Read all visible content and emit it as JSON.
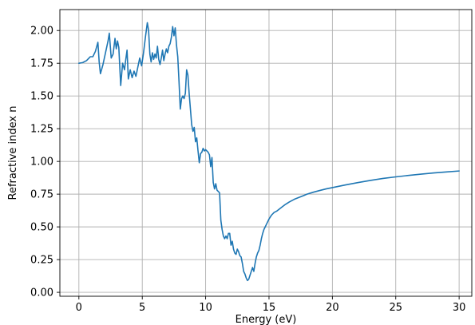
{
  "chart_data": {
    "type": "line",
    "title": "",
    "xlabel": "Energy (eV)",
    "ylabel": "Refractive index n",
    "xlim": [
      -1.5,
      31.0
    ],
    "ylim": [
      -0.03,
      2.16
    ],
    "x_ticks": [
      0,
      5,
      10,
      15,
      20,
      25,
      30
    ],
    "x_tick_labels": [
      "0",
      "5",
      "10",
      "15",
      "20",
      "25",
      "30"
    ],
    "y_ticks": [
      0.0,
      0.25,
      0.5,
      0.75,
      1.0,
      1.25,
      1.5,
      1.75,
      2.0
    ],
    "y_tick_labels": [
      "0.00",
      "0.25",
      "0.50",
      "0.75",
      "1.00",
      "1.25",
      "1.50",
      "1.75",
      "2.00"
    ],
    "grid": true,
    "legend": "none",
    "line_color": "#1f77b4",
    "series": [
      {
        "x": [
          0.0,
          0.3,
          0.6,
          0.9,
          1.1,
          1.3,
          1.5,
          1.6,
          1.7,
          1.9,
          2.1,
          2.3,
          2.4,
          2.55,
          2.7,
          2.85,
          2.95,
          3.05,
          3.15,
          3.3,
          3.45,
          3.6,
          3.7,
          3.8,
          3.9,
          4.05,
          4.2,
          4.35,
          4.5,
          4.65,
          4.8,
          4.95,
          5.1,
          5.25,
          5.4,
          5.5,
          5.6,
          5.7,
          5.8,
          5.9,
          6.0,
          6.1,
          6.2,
          6.3,
          6.4,
          6.5,
          6.6,
          6.7,
          6.8,
          6.9,
          7.0,
          7.1,
          7.2,
          7.3,
          7.4,
          7.5,
          7.6,
          7.7,
          7.8,
          7.9,
          8.0,
          8.1,
          8.2,
          8.3,
          8.4,
          8.5,
          8.6,
          8.7,
          8.8,
          8.9,
          9.0,
          9.1,
          9.2,
          9.3,
          9.4,
          9.5,
          9.6,
          9.7,
          9.8,
          9.9,
          10.0,
          10.1,
          10.2,
          10.3,
          10.4,
          10.5,
          10.6,
          10.7,
          10.8,
          10.9,
          11.0,
          11.1,
          11.2,
          11.3,
          11.4,
          11.5,
          11.6,
          11.7,
          11.8,
          11.9,
          12.0,
          12.1,
          12.2,
          12.3,
          12.4,
          12.5,
          12.6,
          12.7,
          12.8,
          12.9,
          13.0,
          13.1,
          13.2,
          13.3,
          13.4,
          13.5,
          13.6,
          13.7,
          13.8,
          13.9,
          14.0,
          14.1,
          14.2,
          14.3,
          14.4,
          14.5,
          14.6,
          14.7,
          14.8,
          14.9,
          15.0,
          15.2,
          15.4,
          15.6,
          15.8,
          16.0,
          16.3,
          16.6,
          17.0,
          17.5,
          18.0,
          18.5,
          19.0,
          19.5,
          20.0,
          21.0,
          22.0,
          23.0,
          24.0,
          25.0,
          26.0,
          27.0,
          28.0,
          29.0,
          30.0
        ],
        "y": [
          1.75,
          1.755,
          1.77,
          1.8,
          1.8,
          1.84,
          1.91,
          1.76,
          1.67,
          1.74,
          1.83,
          1.92,
          1.98,
          1.79,
          1.82,
          1.94,
          1.86,
          1.92,
          1.87,
          1.58,
          1.75,
          1.7,
          1.78,
          1.85,
          1.63,
          1.7,
          1.64,
          1.69,
          1.65,
          1.72,
          1.79,
          1.73,
          1.83,
          1.95,
          2.06,
          2.0,
          1.82,
          1.76,
          1.83,
          1.78,
          1.82,
          1.79,
          1.88,
          1.78,
          1.74,
          1.79,
          1.85,
          1.77,
          1.82,
          1.86,
          1.83,
          1.88,
          1.9,
          1.95,
          2.03,
          1.96,
          2.02,
          1.89,
          1.8,
          1.61,
          1.4,
          1.48,
          1.5,
          1.48,
          1.52,
          1.7,
          1.66,
          1.52,
          1.4,
          1.28,
          1.23,
          1.26,
          1.15,
          1.18,
          1.08,
          0.99,
          1.06,
          1.07,
          1.1,
          1.08,
          1.09,
          1.08,
          1.07,
          1.05,
          0.96,
          1.03,
          0.84,
          0.79,
          0.83,
          0.78,
          0.77,
          0.76,
          0.55,
          0.48,
          0.43,
          0.41,
          0.43,
          0.41,
          0.45,
          0.45,
          0.36,
          0.39,
          0.33,
          0.3,
          0.29,
          0.33,
          0.31,
          0.28,
          0.27,
          0.22,
          0.16,
          0.14,
          0.11,
          0.09,
          0.1,
          0.13,
          0.16,
          0.19,
          0.16,
          0.22,
          0.27,
          0.3,
          0.32,
          0.36,
          0.41,
          0.45,
          0.48,
          0.5,
          0.52,
          0.54,
          0.56,
          0.59,
          0.61,
          0.62,
          0.635,
          0.65,
          0.672,
          0.69,
          0.711,
          0.73,
          0.75,
          0.765,
          0.778,
          0.79,
          0.8,
          0.82,
          0.838,
          0.855,
          0.87,
          0.882,
          0.893,
          0.903,
          0.912,
          0.92,
          0.927
        ]
      }
    ]
  }
}
